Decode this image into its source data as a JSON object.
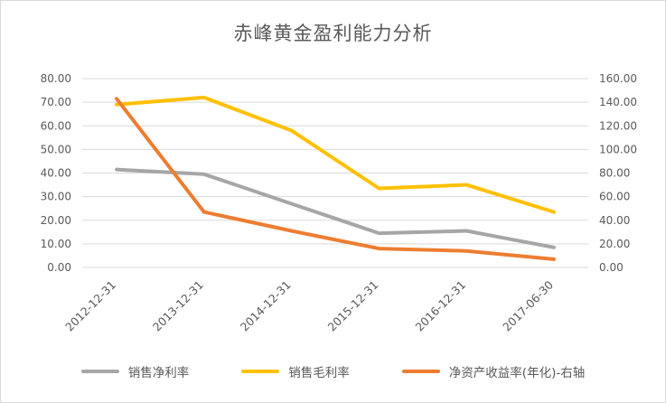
{
  "chart": {
    "title": "赤峰黄金盈利能力分析",
    "left_ticks": [
      "80.00",
      "70.00",
      "60.00",
      "50.00",
      "40.00",
      "30.00",
      "20.00",
      "10.00",
      "0.00"
    ],
    "right_ticks": [
      "160.00",
      "140.00",
      "120.00",
      "100.00",
      "80.00",
      "60.00",
      "40.00",
      "20.00",
      "0.00"
    ],
    "colors": {
      "grid": "#d9d9d9",
      "axis_text": "#595959",
      "title_text": "#595959"
    }
  },
  "chart_data": {
    "type": "line",
    "title": "赤峰黄金盈利能力分析",
    "categories": [
      "2012-12-31",
      "2013-12-31",
      "2014-12-31",
      "2015-12-31",
      "2016-12-31",
      "2017-06-30"
    ],
    "series": [
      {
        "name": "销售净利率",
        "axis": "left",
        "color": "#a6a6a6",
        "values": [
          41.5,
          39.5,
          27.0,
          14.5,
          15.5,
          8.5
        ]
      },
      {
        "name": "销售毛利率",
        "axis": "left",
        "color": "#ffc000",
        "values": [
          69.0,
          72.0,
          58.0,
          33.5,
          35.0,
          23.5
        ]
      },
      {
        "name": "净资产收益率(年化)-右轴",
        "axis": "right",
        "color": "#ed7d31",
        "values": [
          143.0,
          47.0,
          31.0,
          16.0,
          14.0,
          7.0
        ]
      }
    ],
    "left_axis": {
      "min": 0,
      "max": 80,
      "step": 10
    },
    "right_axis": {
      "min": 0,
      "max": 160,
      "step": 20
    },
    "grid": true,
    "legend_position": "bottom"
  }
}
